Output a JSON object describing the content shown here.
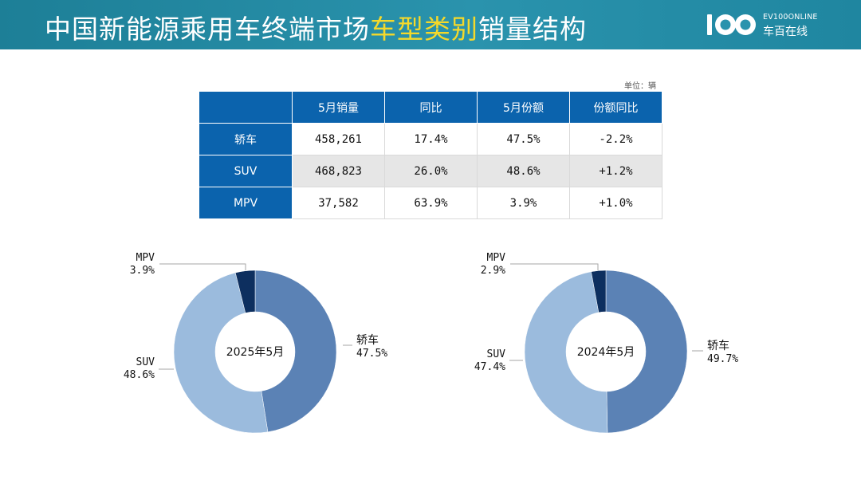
{
  "header": {
    "title_prefix": "中国新能源乘用车终端市场",
    "title_highlight": "车型类别",
    "title_suffix": "销量结构",
    "logo_en": "EV100ONLINE",
    "logo_cn": "车百在线"
  },
  "colors": {
    "header_bg": "#2a93ad",
    "highlight": "#f5d92a",
    "table_header": "#0b63ad",
    "sedan": "#5b82b5",
    "suv": "#9bbbdd",
    "mpv": "#0d2f5f"
  },
  "unit_note": "单位：辆",
  "table": {
    "columns": [
      "",
      "5月销量",
      "同比",
      "5月份额",
      "份额同比"
    ],
    "rows": [
      {
        "label": "轿车",
        "cells": [
          "458,261",
          "17.4%",
          "47.5%",
          "-2.2%"
        ]
      },
      {
        "label": "SUV",
        "cells": [
          "468,823",
          "26.0%",
          "48.6%",
          "+1.2%"
        ]
      },
      {
        "label": "MPV",
        "cells": [
          "37,582",
          "63.9%",
          "3.9%",
          "+1.0%"
        ]
      }
    ]
  },
  "chart_data": [
    {
      "type": "pie",
      "subtype": "donut",
      "title": "2025年5月",
      "series": [
        {
          "name": "轿车",
          "value": 47.5,
          "label": "47.5%",
          "color": "#5b82b5"
        },
        {
          "name": "SUV",
          "value": 48.6,
          "label": "48.6%",
          "color": "#9bbbdd"
        },
        {
          "name": "MPV",
          "value": 3.9,
          "label": "3.9%",
          "color": "#0d2f5f"
        }
      ]
    },
    {
      "type": "pie",
      "subtype": "donut",
      "title": "2024年5月",
      "series": [
        {
          "name": "轿车",
          "value": 49.7,
          "label": "49.7%",
          "color": "#5b82b5"
        },
        {
          "name": "SUV",
          "value": 47.4,
          "label": "47.4%",
          "color": "#9bbbdd"
        },
        {
          "name": "MPV",
          "value": 2.9,
          "label": "2.9%",
          "color": "#0d2f5f"
        }
      ]
    }
  ]
}
